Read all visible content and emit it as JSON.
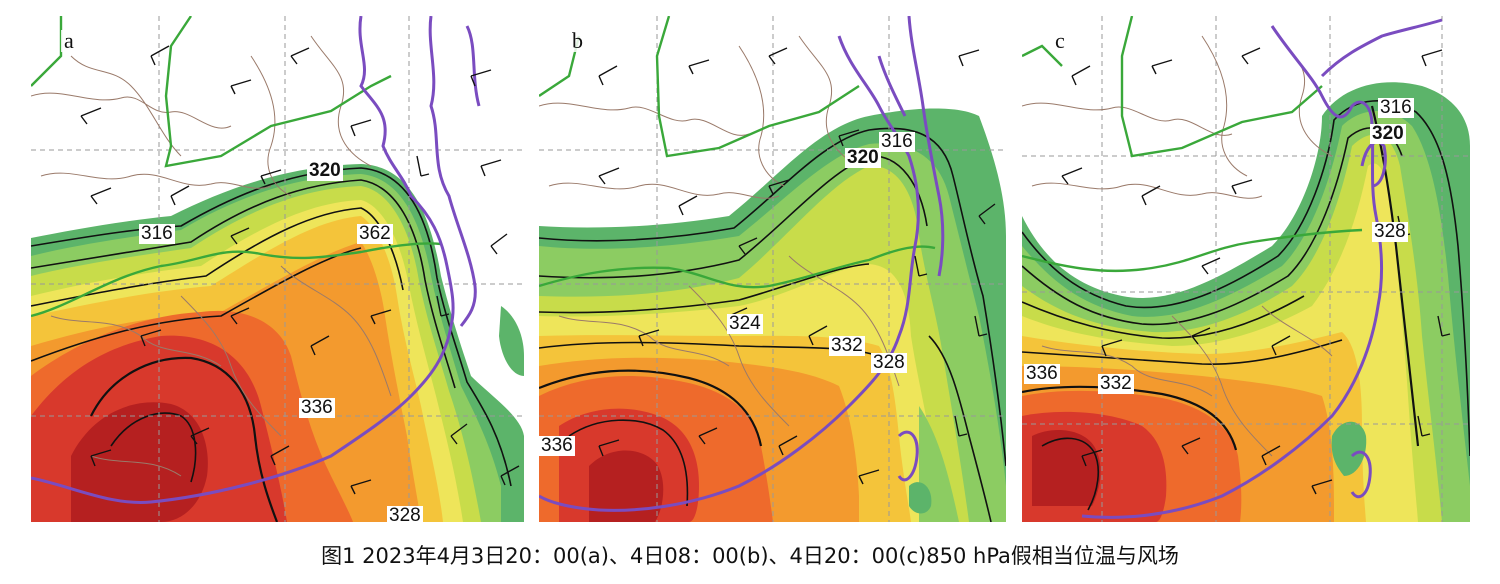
{
  "panels": [
    {
      "letter": "a",
      "labels": [
        "320",
        "316",
        "362",
        "336",
        "328"
      ],
      "colors": [
        "#d8392c",
        "#ee6a2c",
        "#f39a2e",
        "#f4c43a",
        "#eee55a",
        "#c8dc4a",
        "#8ccc62",
        "#5cb46a"
      ]
    },
    {
      "letter": "b",
      "labels": [
        "316",
        "320",
        "324",
        "332",
        "328",
        "336"
      ],
      "colors": [
        "#d8392c",
        "#ee6a2c",
        "#f39a2e",
        "#f4c43a",
        "#eee55a",
        "#c8dc4a",
        "#8ccc62",
        "#5cb46a"
      ]
    },
    {
      "letter": "c",
      "labels": [
        "316",
        "320",
        "328",
        "336",
        "332"
      ],
      "colors": [
        "#d8392c",
        "#ee6a2c",
        "#f39a2e",
        "#f4c43a",
        "#eee55a",
        "#c8dc4a",
        "#8ccc62",
        "#5cb46a"
      ]
    }
  ],
  "caption": "图1  2023年4月3日20：00(a)、4日08：00(b)、4日20：00(c)850 hPa假相当位温与风场",
  "map_colors": {
    "coastline": "#7a4cc0",
    "boundary": "#3aa83a",
    "province_lines": "#9a7a6a",
    "grid": "#999999",
    "contour": "#111111"
  }
}
